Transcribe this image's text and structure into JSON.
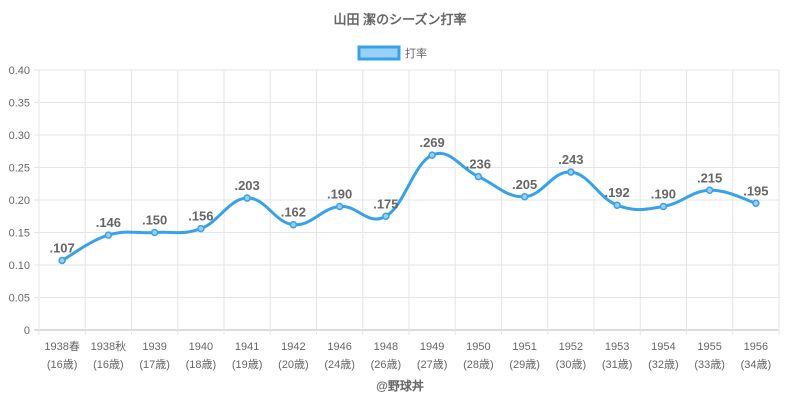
{
  "chart_data": {
    "type": "line",
    "title": "山田 潔のシーズン打率",
    "legend": {
      "label": "打率",
      "placement": "top"
    },
    "categories": [
      "1938春",
      "1938秋",
      "1939",
      "1940",
      "1941",
      "1942",
      "1946",
      "1948",
      "1949",
      "1950",
      "1951",
      "1952",
      "1953",
      "1954",
      "1955",
      "1956"
    ],
    "ages": [
      "(16歳)",
      "(16歳)",
      "(17歳)",
      "(18歳)",
      "(19歳)",
      "(20歳)",
      "(24歳)",
      "(26歳)",
      "(27歳)",
      "(28歳)",
      "(29歳)",
      "(30歳)",
      "(31歳)",
      "(32歳)",
      "(33歳)",
      "(34歳)"
    ],
    "values": [
      0.107,
      0.146,
      0.15,
      0.156,
      0.203,
      0.162,
      0.19,
      0.175,
      0.269,
      0.236,
      0.205,
      0.243,
      0.192,
      0.19,
      0.215,
      0.195
    ],
    "labels": [
      ".107",
      ".146",
      ".150",
      ".156",
      ".203",
      ".162",
      ".190",
      ".175",
      ".269",
      ".236",
      ".205",
      ".243",
      ".192",
      ".190",
      ".215",
      ".195"
    ],
    "ylim": [
      0,
      0.4
    ],
    "yticks": [
      "0",
      "0.05",
      "0.10",
      "0.15",
      "0.20",
      "0.25",
      "0.30",
      "0.35",
      "0.40"
    ],
    "grid": true,
    "credit": "@野球丼",
    "colors": {
      "line": "#36a2eb",
      "fill": "#9ad0f5",
      "grid": "#e5e5e5",
      "text": "#666666"
    }
  }
}
